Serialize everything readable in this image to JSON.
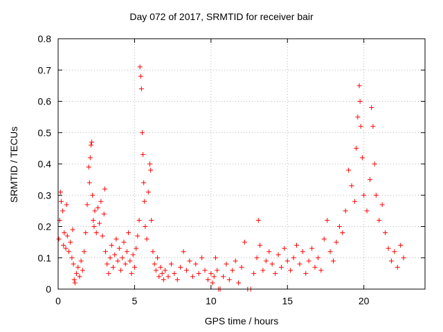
{
  "chart_data": {
    "type": "scatter",
    "title": "Day 072 of 2017, SRMTID for receiver bair",
    "xlabel": "GPS time / hours",
    "ylabel": "SRMTID / TECUs",
    "xlim": [
      0,
      24
    ],
    "ylim": [
      0,
      0.8
    ],
    "xticks": [
      0,
      5,
      10,
      15,
      20
    ],
    "yticks": [
      0,
      0.1,
      0.2,
      0.3,
      0.4,
      0.5,
      0.6,
      0.7,
      0.8
    ],
    "grid": true,
    "marker": "+",
    "color": "#ff0000",
    "series": [
      {
        "name": "SRMTID",
        "points": [
          [
            0.05,
            0.16
          ],
          [
            0.1,
            0.22
          ],
          [
            0.15,
            0.31
          ],
          [
            0.2,
            0.28
          ],
          [
            0.3,
            0.25
          ],
          [
            0.35,
            0.14
          ],
          [
            0.4,
            0.18
          ],
          [
            0.5,
            0.13
          ],
          [
            0.55,
            0.27
          ],
          [
            0.6,
            0.17
          ],
          [
            0.7,
            0.12
          ],
          [
            0.8,
            0.15
          ],
          [
            0.9,
            0.1
          ],
          [
            0.95,
            0.19
          ],
          [
            1.0,
            0.08
          ],
          [
            1.05,
            0.03
          ],
          [
            1.1,
            0.02
          ],
          [
            1.2,
            0.05
          ],
          [
            1.3,
            0.07
          ],
          [
            1.4,
            0.04
          ],
          [
            1.5,
            0.09
          ],
          [
            1.6,
            0.06
          ],
          [
            1.7,
            0.12
          ],
          [
            1.8,
            0.18
          ],
          [
            1.9,
            0.27
          ],
          [
            2.0,
            0.39
          ],
          [
            2.05,
            0.34
          ],
          [
            2.1,
            0.42
          ],
          [
            2.15,
            0.46
          ],
          [
            2.2,
            0.47
          ],
          [
            2.25,
            0.3
          ],
          [
            2.3,
            0.22
          ],
          [
            2.35,
            0.2
          ],
          [
            2.4,
            0.25
          ],
          [
            2.5,
            0.18
          ],
          [
            2.6,
            0.26
          ],
          [
            2.7,
            0.21
          ],
          [
            2.8,
            0.28
          ],
          [
            2.9,
            0.17
          ],
          [
            3.0,
            0.24
          ],
          [
            3.05,
            0.32
          ],
          [
            3.1,
            0.12
          ],
          [
            3.2,
            0.08
          ],
          [
            3.3,
            0.05
          ],
          [
            3.4,
            0.1
          ],
          [
            3.5,
            0.14
          ],
          [
            3.6,
            0.07
          ],
          [
            3.7,
            0.11
          ],
          [
            3.8,
            0.16
          ],
          [
            3.9,
            0.09
          ],
          [
            4.0,
            0.13
          ],
          [
            4.1,
            0.06
          ],
          [
            4.2,
            0.1
          ],
          [
            4.3,
            0.15
          ],
          [
            4.4,
            0.08
          ],
          [
            4.5,
            0.12
          ],
          [
            4.6,
            0.18
          ],
          [
            4.7,
            0.09
          ],
          [
            4.8,
            0.05
          ],
          [
            4.9,
            0.11
          ],
          [
            5.0,
            0.07
          ],
          [
            5.1,
            0.13
          ],
          [
            5.2,
            0.17
          ],
          [
            5.3,
            0.22
          ],
          [
            5.35,
            0.71
          ],
          [
            5.4,
            0.68
          ],
          [
            5.45,
            0.64
          ],
          [
            5.5,
            0.5
          ],
          [
            5.55,
            0.43
          ],
          [
            5.6,
            0.34
          ],
          [
            5.65,
            0.28
          ],
          [
            5.7,
            0.2
          ],
          [
            5.8,
            0.16
          ],
          [
            5.9,
            0.31
          ],
          [
            6.0,
            0.4
          ],
          [
            6.05,
            0.38
          ],
          [
            6.1,
            0.22
          ],
          [
            6.2,
            0.12
          ],
          [
            6.3,
            0.08
          ],
          [
            6.4,
            0.06
          ],
          [
            6.5,
            0.1
          ],
          [
            6.6,
            0.04
          ],
          [
            6.7,
            0.07
          ],
          [
            6.8,
            0.05
          ],
          [
            6.9,
            0.03
          ],
          [
            7.0,
            0.06
          ],
          [
            7.2,
            0.04
          ],
          [
            7.4,
            0.08
          ],
          [
            7.6,
            0.05
          ],
          [
            7.8,
            0.03
          ],
          [
            8.0,
            0.07
          ],
          [
            8.2,
            0.12
          ],
          [
            8.4,
            0.06
          ],
          [
            8.6,
            0.09
          ],
          [
            8.8,
            0.04
          ],
          [
            9.0,
            0.08
          ],
          [
            9.2,
            0.05
          ],
          [
            9.4,
            0.1
          ],
          [
            9.6,
            0.06
          ],
          [
            9.8,
            0.03
          ],
          [
            10.0,
            0.05
          ],
          [
            10.1,
            0.02
          ],
          [
            10.2,
            0.04
          ],
          [
            10.3,
            0.1
          ],
          [
            10.4,
            0.06
          ],
          [
            10.5,
            0.0
          ],
          [
            10.6,
            0.0
          ],
          [
            10.8,
            0.04
          ],
          [
            11.0,
            0.08
          ],
          [
            11.2,
            0.03
          ],
          [
            11.4,
            0.06
          ],
          [
            11.6,
            0.09
          ],
          [
            11.8,
            0.02
          ],
          [
            12.0,
            0.07
          ],
          [
            12.2,
            0.15
          ],
          [
            12.4,
            0.0
          ],
          [
            12.6,
            0.0
          ],
          [
            12.8,
            0.05
          ],
          [
            13.0,
            0.1
          ],
          [
            13.1,
            0.22
          ],
          [
            13.2,
            0.14
          ],
          [
            13.4,
            0.06
          ],
          [
            13.6,
            0.09
          ],
          [
            13.8,
            0.12
          ],
          [
            14.0,
            0.08
          ],
          [
            14.2,
            0.05
          ],
          [
            14.4,
            0.11
          ],
          [
            14.6,
            0.07
          ],
          [
            14.8,
            0.13
          ],
          [
            15.0,
            0.09
          ],
          [
            15.2,
            0.06
          ],
          [
            15.4,
            0.1
          ],
          [
            15.6,
            0.14
          ],
          [
            15.8,
            0.08
          ],
          [
            16.0,
            0.12
          ],
          [
            16.2,
            0.05
          ],
          [
            16.4,
            0.09
          ],
          [
            16.6,
            0.13
          ],
          [
            16.8,
            0.07
          ],
          [
            17.0,
            0.1
          ],
          [
            17.2,
            0.06
          ],
          [
            17.4,
            0.16
          ],
          [
            17.6,
            0.22
          ],
          [
            17.8,
            0.12
          ],
          [
            18.0,
            0.09
          ],
          [
            18.2,
            0.15
          ],
          [
            18.4,
            0.2
          ],
          [
            18.6,
            0.18
          ],
          [
            18.8,
            0.25
          ],
          [
            19.0,
            0.38
          ],
          [
            19.2,
            0.33
          ],
          [
            19.4,
            0.28
          ],
          [
            19.5,
            0.45
          ],
          [
            19.6,
            0.55
          ],
          [
            19.7,
            0.65
          ],
          [
            19.75,
            0.6
          ],
          [
            19.8,
            0.52
          ],
          [
            19.9,
            0.42
          ],
          [
            20.0,
            0.3
          ],
          [
            20.2,
            0.25
          ],
          [
            20.4,
            0.35
          ],
          [
            20.5,
            0.58
          ],
          [
            20.6,
            0.52
          ],
          [
            20.7,
            0.4
          ],
          [
            20.8,
            0.3
          ],
          [
            21.0,
            0.22
          ],
          [
            21.2,
            0.27
          ],
          [
            21.4,
            0.18
          ],
          [
            21.6,
            0.13
          ],
          [
            21.8,
            0.09
          ],
          [
            22.0,
            0.12
          ],
          [
            22.2,
            0.07
          ],
          [
            22.4,
            0.14
          ],
          [
            22.6,
            0.1
          ]
        ]
      }
    ]
  }
}
